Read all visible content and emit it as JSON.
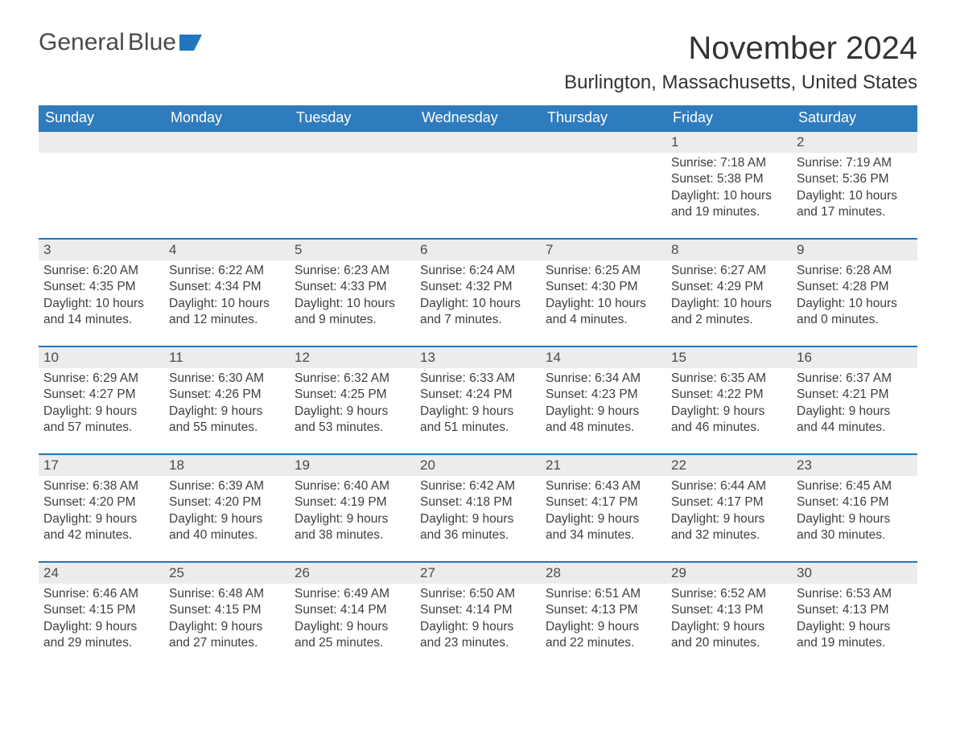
{
  "brand": {
    "name1": "General",
    "name2": "Blue"
  },
  "title": "November 2024",
  "location": "Burlington, Massachusetts, United States",
  "colors": {
    "header_bg": "#2e7cbe",
    "header_text": "#ffffff",
    "row_border": "#2176bd",
    "daynum_bg": "#ececec",
    "text": "#3e3e3e",
    "page_bg": "#ffffff"
  },
  "typography": {
    "title_fontsize": 40,
    "location_fontsize": 24,
    "weekday_fontsize": 18,
    "daynum_fontsize": 17,
    "body_fontsize": 15.5
  },
  "weekdays": [
    "Sunday",
    "Monday",
    "Tuesday",
    "Wednesday",
    "Thursday",
    "Friday",
    "Saturday"
  ],
  "weeks": [
    [
      null,
      null,
      null,
      null,
      null,
      {
        "n": "1",
        "sunrise": "Sunrise: 7:18 AM",
        "sunset": "Sunset: 5:38 PM",
        "d1": "Daylight: 10 hours",
        "d2": "and 19 minutes."
      },
      {
        "n": "2",
        "sunrise": "Sunrise: 7:19 AM",
        "sunset": "Sunset: 5:36 PM",
        "d1": "Daylight: 10 hours",
        "d2": "and 17 minutes."
      }
    ],
    [
      {
        "n": "3",
        "sunrise": "Sunrise: 6:20 AM",
        "sunset": "Sunset: 4:35 PM",
        "d1": "Daylight: 10 hours",
        "d2": "and 14 minutes."
      },
      {
        "n": "4",
        "sunrise": "Sunrise: 6:22 AM",
        "sunset": "Sunset: 4:34 PM",
        "d1": "Daylight: 10 hours",
        "d2": "and 12 minutes."
      },
      {
        "n": "5",
        "sunrise": "Sunrise: 6:23 AM",
        "sunset": "Sunset: 4:33 PM",
        "d1": "Daylight: 10 hours",
        "d2": "and 9 minutes."
      },
      {
        "n": "6",
        "sunrise": "Sunrise: 6:24 AM",
        "sunset": "Sunset: 4:32 PM",
        "d1": "Daylight: 10 hours",
        "d2": "and 7 minutes."
      },
      {
        "n": "7",
        "sunrise": "Sunrise: 6:25 AM",
        "sunset": "Sunset: 4:30 PM",
        "d1": "Daylight: 10 hours",
        "d2": "and 4 minutes."
      },
      {
        "n": "8",
        "sunrise": "Sunrise: 6:27 AM",
        "sunset": "Sunset: 4:29 PM",
        "d1": "Daylight: 10 hours",
        "d2": "and 2 minutes."
      },
      {
        "n": "9",
        "sunrise": "Sunrise: 6:28 AM",
        "sunset": "Sunset: 4:28 PM",
        "d1": "Daylight: 10 hours",
        "d2": "and 0 minutes."
      }
    ],
    [
      {
        "n": "10",
        "sunrise": "Sunrise: 6:29 AM",
        "sunset": "Sunset: 4:27 PM",
        "d1": "Daylight: 9 hours",
        "d2": "and 57 minutes."
      },
      {
        "n": "11",
        "sunrise": "Sunrise: 6:30 AM",
        "sunset": "Sunset: 4:26 PM",
        "d1": "Daylight: 9 hours",
        "d2": "and 55 minutes."
      },
      {
        "n": "12",
        "sunrise": "Sunrise: 6:32 AM",
        "sunset": "Sunset: 4:25 PM",
        "d1": "Daylight: 9 hours",
        "d2": "and 53 minutes."
      },
      {
        "n": "13",
        "sunrise": "Sunrise: 6:33 AM",
        "sunset": "Sunset: 4:24 PM",
        "d1": "Daylight: 9 hours",
        "d2": "and 51 minutes."
      },
      {
        "n": "14",
        "sunrise": "Sunrise: 6:34 AM",
        "sunset": "Sunset: 4:23 PM",
        "d1": "Daylight: 9 hours",
        "d2": "and 48 minutes."
      },
      {
        "n": "15",
        "sunrise": "Sunrise: 6:35 AM",
        "sunset": "Sunset: 4:22 PM",
        "d1": "Daylight: 9 hours",
        "d2": "and 46 minutes."
      },
      {
        "n": "16",
        "sunrise": "Sunrise: 6:37 AM",
        "sunset": "Sunset: 4:21 PM",
        "d1": "Daylight: 9 hours",
        "d2": "and 44 minutes."
      }
    ],
    [
      {
        "n": "17",
        "sunrise": "Sunrise: 6:38 AM",
        "sunset": "Sunset: 4:20 PM",
        "d1": "Daylight: 9 hours",
        "d2": "and 42 minutes."
      },
      {
        "n": "18",
        "sunrise": "Sunrise: 6:39 AM",
        "sunset": "Sunset: 4:20 PM",
        "d1": "Daylight: 9 hours",
        "d2": "and 40 minutes."
      },
      {
        "n": "19",
        "sunrise": "Sunrise: 6:40 AM",
        "sunset": "Sunset: 4:19 PM",
        "d1": "Daylight: 9 hours",
        "d2": "and 38 minutes."
      },
      {
        "n": "20",
        "sunrise": "Sunrise: 6:42 AM",
        "sunset": "Sunset: 4:18 PM",
        "d1": "Daylight: 9 hours",
        "d2": "and 36 minutes."
      },
      {
        "n": "21",
        "sunrise": "Sunrise: 6:43 AM",
        "sunset": "Sunset: 4:17 PM",
        "d1": "Daylight: 9 hours",
        "d2": "and 34 minutes."
      },
      {
        "n": "22",
        "sunrise": "Sunrise: 6:44 AM",
        "sunset": "Sunset: 4:17 PM",
        "d1": "Daylight: 9 hours",
        "d2": "and 32 minutes."
      },
      {
        "n": "23",
        "sunrise": "Sunrise: 6:45 AM",
        "sunset": "Sunset: 4:16 PM",
        "d1": "Daylight: 9 hours",
        "d2": "and 30 minutes."
      }
    ],
    [
      {
        "n": "24",
        "sunrise": "Sunrise: 6:46 AM",
        "sunset": "Sunset: 4:15 PM",
        "d1": "Daylight: 9 hours",
        "d2": "and 29 minutes."
      },
      {
        "n": "25",
        "sunrise": "Sunrise: 6:48 AM",
        "sunset": "Sunset: 4:15 PM",
        "d1": "Daylight: 9 hours",
        "d2": "and 27 minutes."
      },
      {
        "n": "26",
        "sunrise": "Sunrise: 6:49 AM",
        "sunset": "Sunset: 4:14 PM",
        "d1": "Daylight: 9 hours",
        "d2": "and 25 minutes."
      },
      {
        "n": "27",
        "sunrise": "Sunrise: 6:50 AM",
        "sunset": "Sunset: 4:14 PM",
        "d1": "Daylight: 9 hours",
        "d2": "and 23 minutes."
      },
      {
        "n": "28",
        "sunrise": "Sunrise: 6:51 AM",
        "sunset": "Sunset: 4:13 PM",
        "d1": "Daylight: 9 hours",
        "d2": "and 22 minutes."
      },
      {
        "n": "29",
        "sunrise": "Sunrise: 6:52 AM",
        "sunset": "Sunset: 4:13 PM",
        "d1": "Daylight: 9 hours",
        "d2": "and 20 minutes."
      },
      {
        "n": "30",
        "sunrise": "Sunrise: 6:53 AM",
        "sunset": "Sunset: 4:13 PM",
        "d1": "Daylight: 9 hours",
        "d2": "and 19 minutes."
      }
    ]
  ]
}
